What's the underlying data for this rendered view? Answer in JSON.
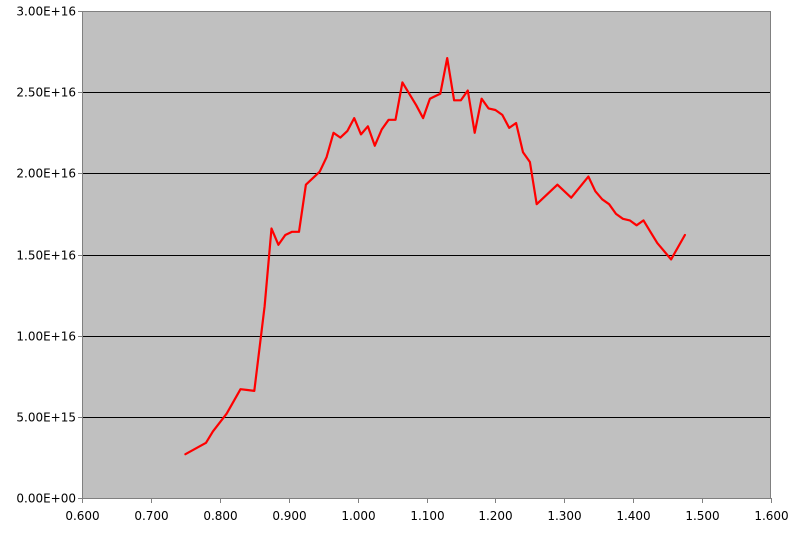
{
  "chart_data": {
    "type": "line",
    "title": "",
    "xlabel": "",
    "ylabel": "",
    "xlim": [
      0.6,
      1.6
    ],
    "ylim": [
      0,
      3e+16
    ],
    "grid": "horizontal",
    "legend": "none",
    "x_ticks": [
      {
        "value": 0.6,
        "label": "0.600"
      },
      {
        "value": 0.7,
        "label": "0.700"
      },
      {
        "value": 0.8,
        "label": "0.800"
      },
      {
        "value": 0.9,
        "label": "0.900"
      },
      {
        "value": 1.0,
        "label": "1.000"
      },
      {
        "value": 1.1,
        "label": "1.100"
      },
      {
        "value": 1.2,
        "label": "1.200"
      },
      {
        "value": 1.3,
        "label": "1.300"
      },
      {
        "value": 1.4,
        "label": "1.400"
      },
      {
        "value": 1.5,
        "label": "1.500"
      },
      {
        "value": 1.6,
        "label": "1.600"
      }
    ],
    "y_ticks": [
      {
        "value": 0,
        "label": "0.00E+00"
      },
      {
        "value": 5000000000000000.0,
        "label": "5.00E+15"
      },
      {
        "value": 1e+16,
        "label": "1.00E+16"
      },
      {
        "value": 1.5e+16,
        "label": "1.50E+16"
      },
      {
        "value": 2e+16,
        "label": "2.00E+16"
      },
      {
        "value": 2.5e+16,
        "label": "2.50E+16"
      },
      {
        "value": 3e+16,
        "label": "3.00E+16"
      }
    ],
    "colors": {
      "plot_background": "#c0c0c0",
      "series": "#ff0000",
      "gridline": "#000000",
      "axis": "#808080"
    },
    "series": [
      {
        "x": [
          0.75,
          0.78,
          0.79,
          0.81,
          0.83,
          0.84,
          0.85,
          0.865,
          0.875,
          0.885,
          0.895,
          0.905,
          0.915,
          0.925,
          0.935,
          0.945,
          0.955,
          0.965,
          0.975,
          0.985,
          0.995,
          1.005,
          1.015,
          1.025,
          1.035,
          1.045,
          1.055,
          1.065,
          1.075,
          1.085,
          1.095,
          1.105,
          1.115,
          1.12,
          1.13,
          1.14,
          1.15,
          1.16,
          1.17,
          1.18,
          1.19,
          1.2,
          1.21,
          1.22,
          1.23,
          1.24,
          1.25,
          1.26,
          1.27,
          1.29,
          1.31,
          1.335,
          1.345,
          1.355,
          1.365,
          1.375,
          1.385,
          1.395,
          1.405,
          1.415,
          1.425,
          1.435,
          1.455,
          1.475
        ],
        "values": [
          2700000000000000.0,
          3400000000000000.0,
          4100000000000000.0,
          5200000000000000.0,
          6700000000000000.0,
          6650000000000000.0,
          6600000000000000.0,
          1.18e+16,
          1.66e+16,
          1.56e+16,
          1.62e+16,
          1.64e+16,
          1.64e+16,
          1.93e+16,
          1.97e+16,
          2.01e+16,
          2.1e+16,
          2.25e+16,
          2.22e+16,
          2.26e+16,
          2.34e+16,
          2.24e+16,
          2.29e+16,
          2.17e+16,
          2.27e+16,
          2.33e+16,
          2.33e+16,
          2.56e+16,
          2.49e+16,
          2.42e+16,
          2.34e+16,
          2.46e+16,
          2.48e+16,
          2.49e+16,
          2.71e+16,
          2.45e+16,
          2.45e+16,
          2.51e+16,
          2.25e+16,
          2.46e+16,
          2.4e+16,
          2.39e+16,
          2.36e+16,
          2.28e+16,
          2.31e+16,
          2.13e+16,
          2.07e+16,
          1.81e+16,
          1.85e+16,
          1.93e+16,
          1.85e+16,
          1.98e+16,
          1.89e+16,
          1.84e+16,
          1.81e+16,
          1.75e+16,
          1.72e+16,
          1.71e+16,
          1.68e+16,
          1.71e+16,
          1.64e+16,
          1.57e+16,
          1.47e+16,
          1.62e+16
        ]
      }
    ]
  }
}
